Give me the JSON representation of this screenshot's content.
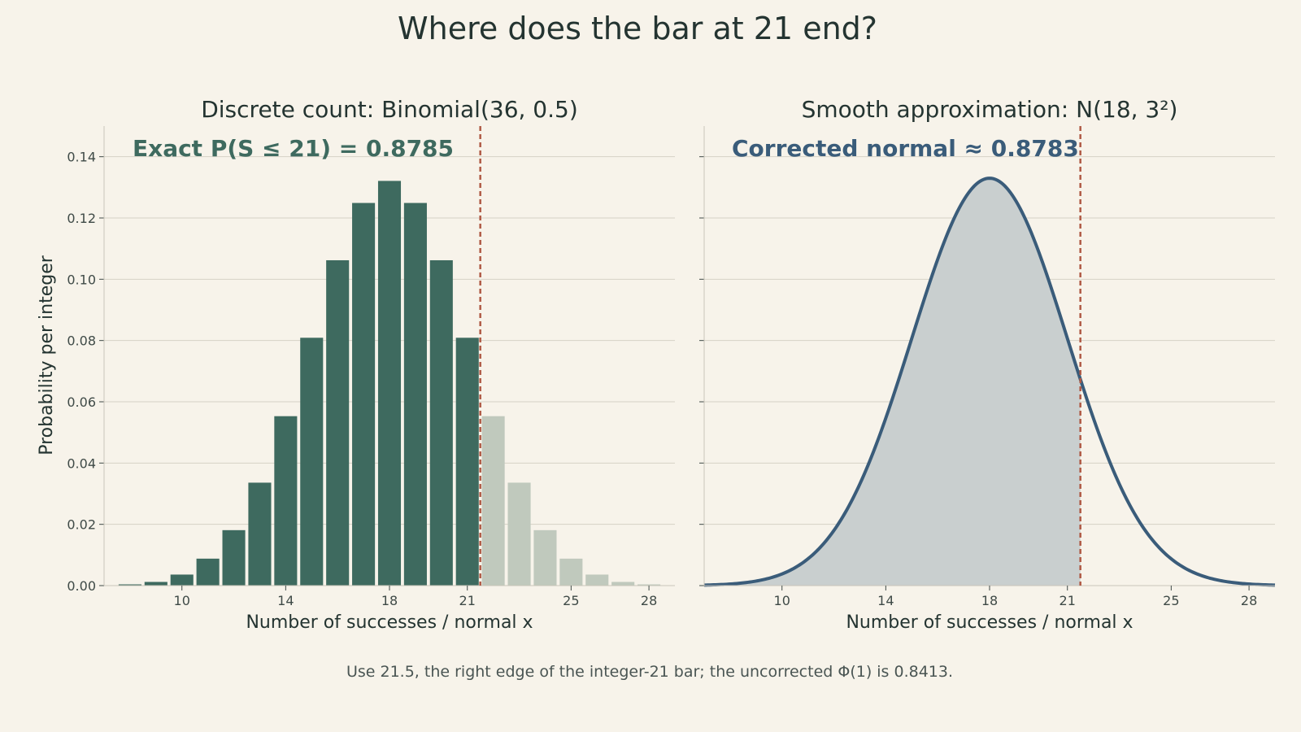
{
  "title": "Where does the bar at 21 end?",
  "footer": "Use 21.5, the right edge of the integer-21 bar; the uncorrected Φ(1) is 0.8413.",
  "colors": {
    "background": "#f7f3ea",
    "bar_included": "#3e6a5f",
    "bar_excluded": "#c0c9bd",
    "curve": "#3a5c7a",
    "curve_fill": "#c9cfcf",
    "cutoff_line": "#b05a45",
    "annot_left": "#3e6a5f",
    "annot_right": "#3a5c7a"
  },
  "chart_data": [
    {
      "type": "bar",
      "title": "Discrete count: Binomial(36, 0.5)",
      "xlabel": "Number of successes / normal x",
      "ylabel": "Probability per integer",
      "annotation": "Exact P(S ≤ 21) = 0.8785",
      "cutoff": 21.5,
      "xlim": [
        7,
        29
      ],
      "ylim": [
        0,
        0.15
      ],
      "xticks": [
        10,
        14,
        18,
        21,
        25,
        28
      ],
      "yticks": [
        0.0,
        0.02,
        0.04,
        0.06,
        0.08,
        0.1,
        0.12,
        0.14
      ],
      "ytick_labels": [
        "0.00",
        "0.02",
        "0.04",
        "0.06",
        "0.08",
        "0.10",
        "0.12",
        "0.14"
      ],
      "grid": true,
      "x": [
        8,
        9,
        10,
        11,
        12,
        13,
        14,
        15,
        16,
        17,
        18,
        19,
        20,
        21,
        22,
        23,
        24,
        25,
        26,
        27,
        28
      ],
      "values": [
        0.0004,
        0.0012,
        0.0036,
        0.0088,
        0.0181,
        0.0336,
        0.0553,
        0.0809,
        0.1062,
        0.1249,
        0.1321,
        0.1249,
        0.1062,
        0.0809,
        0.0553,
        0.0336,
        0.0181,
        0.0088,
        0.0036,
        0.0012,
        0.0004
      ]
    },
    {
      "type": "area",
      "title": "Smooth approximation: N(18, 3²)",
      "xlabel": "Number of successes / normal x",
      "annotation": "Corrected normal ≈ 0.8783",
      "mean": 18,
      "sd": 3,
      "cutoff": 21.5,
      "xlim": [
        7,
        29
      ],
      "ylim": [
        0,
        0.15
      ],
      "xticks": [
        10,
        14,
        18,
        21,
        25,
        28
      ],
      "grid": true
    }
  ]
}
